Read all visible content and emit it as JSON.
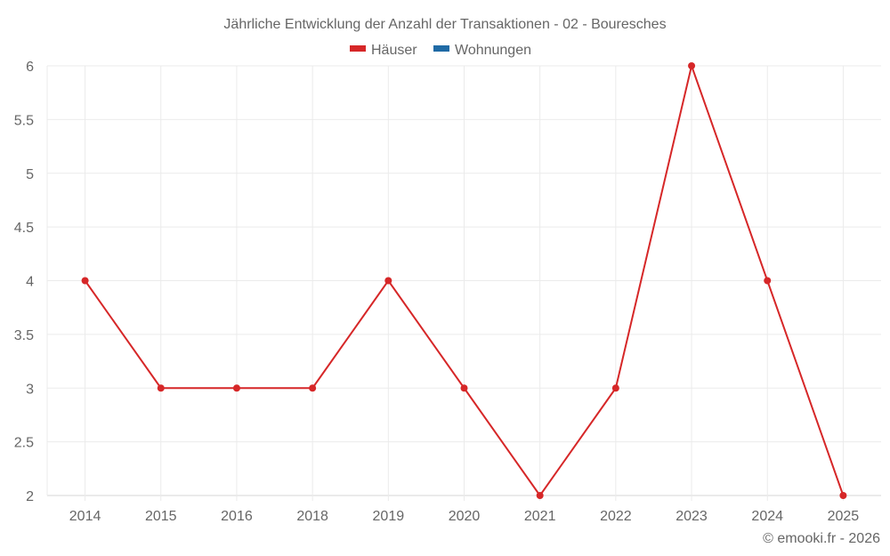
{
  "chart_data": {
    "type": "line",
    "title": "Jährliche Entwicklung der Anzahl der Transaktionen - 02 - Bouresches",
    "xlabel": "",
    "ylabel": "",
    "categories": [
      "2014",
      "2015",
      "2016",
      "2018",
      "2019",
      "2020",
      "2021",
      "2022",
      "2023",
      "2024",
      "2025"
    ],
    "series": [
      {
        "name": "Häuser",
        "color": "#d62728",
        "values": [
          4,
          3,
          3,
          3,
          4,
          3,
          2,
          3,
          6,
          4,
          2
        ]
      },
      {
        "name": "Wohnungen",
        "color": "#1f6aa5",
        "values": []
      }
    ],
    "ylim": [
      2,
      6
    ],
    "yticks": [
      "2",
      "2.5",
      "3",
      "3.5",
      "4",
      "4.5",
      "5",
      "5.5",
      "6"
    ],
    "grid": true,
    "legend_position": "top-center"
  },
  "credit": "© emooki.fr - 2026"
}
